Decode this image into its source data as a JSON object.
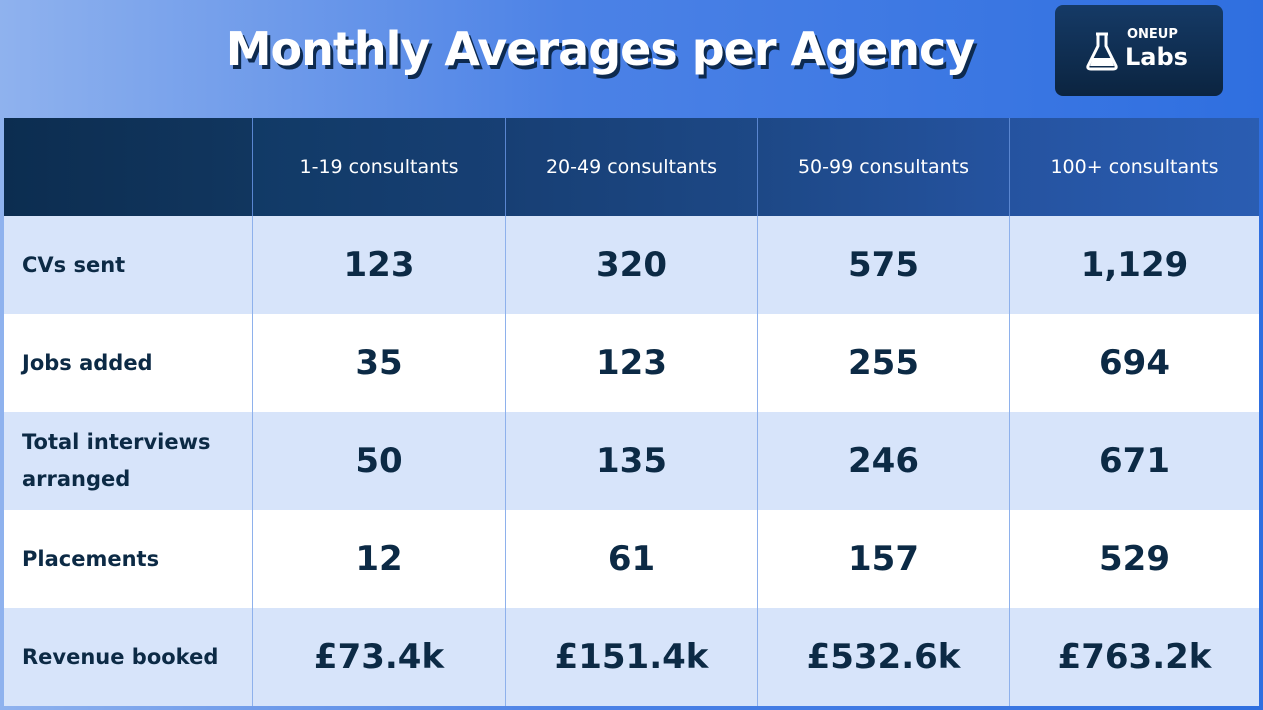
{
  "header": {
    "title": "Monthly Averages per Agency"
  },
  "logo": {
    "top": "ONEUP",
    "bottom": "Labs"
  },
  "table": {
    "columns": [
      "1-19 consultants",
      "20-49 consultants",
      "50-99 consultants",
      "100+ consultants"
    ],
    "rows": [
      [
        "CVs sent",
        "123",
        "320",
        "575",
        "1,129"
      ],
      [
        "Jobs added",
        "35",
        "123",
        "255",
        "694"
      ],
      [
        "Total interviews arranged",
        "50",
        "135",
        "246",
        "671"
      ],
      [
        "Placements",
        "12",
        "61",
        "157",
        "529"
      ],
      [
        "Revenue booked",
        "£73.4k",
        "£151.4k",
        "£532.6k",
        "£763.2k"
      ]
    ]
  }
}
